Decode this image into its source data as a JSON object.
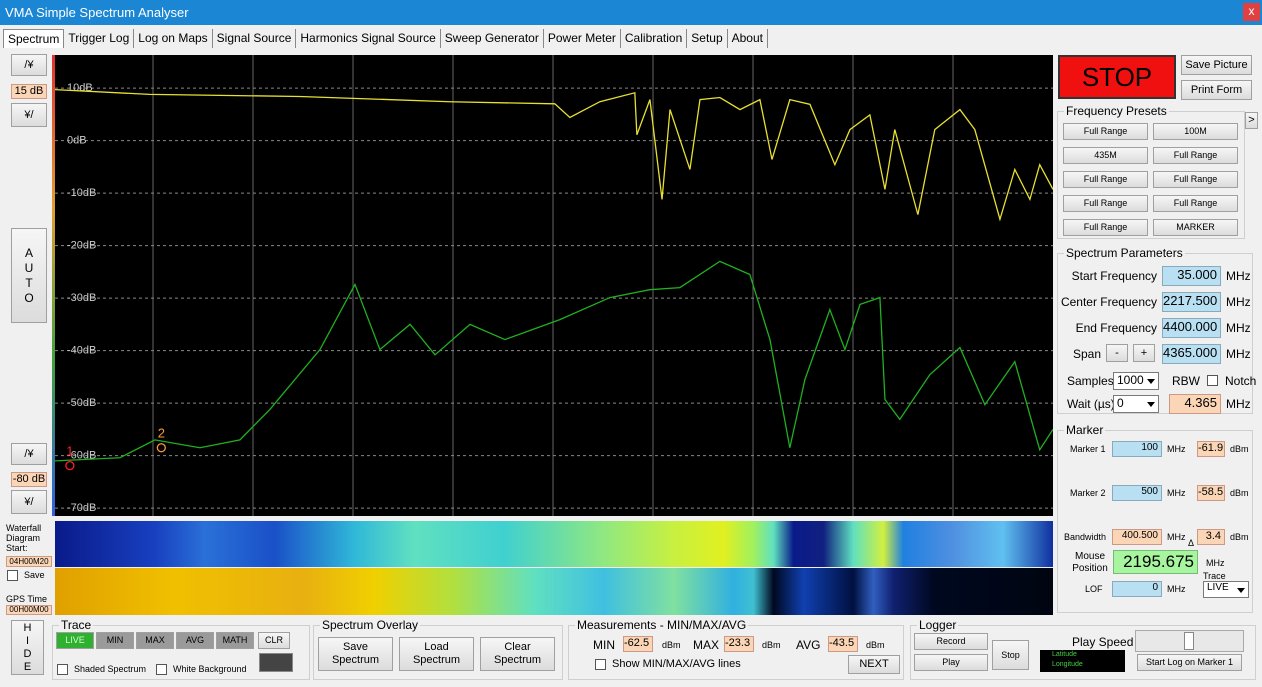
{
  "window": {
    "title": "VMA Simple Spectrum Analyser",
    "close": "x"
  },
  "tabs": [
    "Spectrum",
    "Trigger Log",
    "Log on Maps",
    "Signal Source",
    "Harmonics Signal Source",
    "Sweep Generator",
    "Power Meter",
    "Calibration",
    "Setup",
    "About"
  ],
  "left_panel": {
    "ref_up": "/¥",
    "ref_level": "15 dB",
    "ref_down": "¥/",
    "auto": "AUTO",
    "bottom_up": "/¥",
    "bottom_level": "-80 dB",
    "bottom_down": "¥/"
  },
  "waterfall": {
    "label": "Waterfall Diagram Start:",
    "start_time": "04H00M20",
    "save": "Save",
    "gps_label": "GPS Time",
    "gps_time": "00H00M00"
  },
  "chart_data": {
    "type": "line",
    "xlim": [
      35,
      4400
    ],
    "ylim": [
      -71.5,
      16.3
    ],
    "yticks": [
      {
        "value": 10,
        "label": "10dB"
      },
      {
        "value": 0,
        "label": "0dB"
      },
      {
        "value": -10,
        "label": "-10dB"
      },
      {
        "value": -20,
        "label": "-20dB"
      },
      {
        "value": -30,
        "label": "-30dB"
      },
      {
        "value": -40,
        "label": "-40dB"
      },
      {
        "value": -50,
        "label": "-50dB"
      },
      {
        "value": -60,
        "label": "-60dB"
      },
      {
        "value": -70,
        "label": "-70dB"
      }
    ],
    "grid": true,
    "markers": [
      {
        "label": "1",
        "x": 100,
        "value": -61.9,
        "color": "#ff2020"
      },
      {
        "label": "2",
        "x": 500,
        "value": -58.5,
        "color": "#ff9a30"
      }
    ],
    "series": [
      {
        "color": "#e8e030",
        "x": [
          35,
          450,
          1106,
          1762,
          2221,
          2287,
          2418,
          2571,
          2580,
          2637,
          2690,
          2725,
          2812,
          2856,
          2943,
          3031,
          3118,
          3171,
          3249,
          3337,
          3446,
          3512,
          3599,
          3665,
          3708,
          3809,
          3883,
          3993,
          4058,
          4168,
          4233,
          4299,
          4342,
          4400
        ],
        "values": [
          9.7,
          8.8,
          8.4,
          7.4,
          7,
          4.4,
          7.4,
          9.1,
          1.1,
          7.8,
          -11.2,
          5.9,
          -5.5,
          7.8,
          8.2,
          5.9,
          7.8,
          -3.6,
          7.8,
          6.9,
          -4.6,
          2.1,
          4.9,
          -9.3,
          2.1,
          -14.1,
          2.1,
          5.9,
          2.1,
          -15,
          -5.5,
          -11.2,
          -4.6,
          -9.3
        ]
      },
      {
        "color": "#20b020",
        "x": [
          35,
          319,
          472,
          669,
          844,
          975,
          1194,
          1347,
          1456,
          1588,
          1697,
          1850,
          2003,
          2243,
          2462,
          2637,
          2768,
          2943,
          3074,
          3162,
          3249,
          3315,
          3424,
          3490,
          3556,
          3643,
          3665,
          3730,
          3861,
          3993,
          4102,
          4233,
          4342,
          4400
        ],
        "values": [
          -61,
          -60.4,
          -57,
          -58.5,
          -57,
          -51.2,
          -39.8,
          -27.4,
          -39.8,
          -35,
          -40.8,
          -35,
          -37.9,
          -34.1,
          -29.9,
          -28.4,
          -28,
          -23,
          -25.5,
          -37.9,
          -58.5,
          -45.5,
          -32.2,
          -39.8,
          -31.2,
          -29.9,
          -49.3,
          -53.1,
          -44.6,
          -39.4,
          -50.3,
          -42.1,
          -58.9,
          -55
        ]
      }
    ]
  },
  "controls": {
    "stop": "STOP",
    "save_picture": "Save Picture",
    "print_form": "Print Form"
  },
  "frequency_presets": {
    "title": "Frequency Presets",
    "more": ">",
    "buttons": [
      "Full Range",
      "100M",
      "435M",
      "Full Range",
      "Full Range",
      "Full Range",
      "Full Range",
      "Full Range",
      "Full Range",
      "MARKER"
    ]
  },
  "spectrum_parameters": {
    "title": "Spectrum Parameters",
    "start_label": "Start Frequency",
    "start": "35.000",
    "center_label": "Center Frequency",
    "center": "2217.500",
    "end_label": "End Frequency",
    "end": "4400.000",
    "span_label": "Span",
    "span_minus": "-",
    "span_plus": "+",
    "span": "4365.000",
    "unit": "MHz",
    "samples_label": "Samples",
    "samples": "1000",
    "rbw_label": "RBW",
    "notch_label": "Notch",
    "wait_label": "Wait (µs)",
    "wait": "0",
    "rbw": "4.365"
  },
  "marker": {
    "title": "Marker",
    "marker1_label": "Marker 1",
    "marker1_freq": "100",
    "marker1_level": "-61.9",
    "marker2_label": "Marker 2",
    "marker2_freq": "500",
    "marker2_level": "-58.5",
    "bandwidth_label": "Bandwidth",
    "bandwidth": "400.500",
    "bandwidth_level": "3.4",
    "delta": "Δ",
    "mouse_label": "Mouse Position",
    "mouse": "2195.675",
    "trace_label": "Trace",
    "trace": "LIVE",
    "lof_label": "LOF",
    "lof": "0",
    "unit": "MHz",
    "level_unit": "dBm"
  },
  "hide": "HIDE",
  "trace": {
    "title": "Trace",
    "buttons": [
      "LIVE",
      "MIN",
      "MAX",
      "AVG",
      "MATH"
    ],
    "clear": "CLR",
    "shaded": "Shaded Spectrum",
    "white_bg": "White Background"
  },
  "overlay": {
    "title": "Spectrum Overlay",
    "buttons": [
      "Save Spectrum",
      "Load Spectrum",
      "Clear Spectrum"
    ]
  },
  "measurements": {
    "title": "Measurements - MIN/MAX/AVG",
    "min_label": "MIN",
    "min": "-62.5",
    "max_label": "MAX",
    "max": "-23.3",
    "avg_label": "AVG",
    "avg": "-43.5",
    "unit": "dBm",
    "show_lines": "Show MIN/MAX/AVG lines",
    "next": "NEXT"
  },
  "logger": {
    "title": "Logger",
    "record": "Record",
    "play": "Play",
    "stop": "Stop",
    "play_speed": "Play Speed",
    "start_log": "Start Log on Marker 1",
    "latitude": "Latitude",
    "longitude": "Longitude"
  }
}
